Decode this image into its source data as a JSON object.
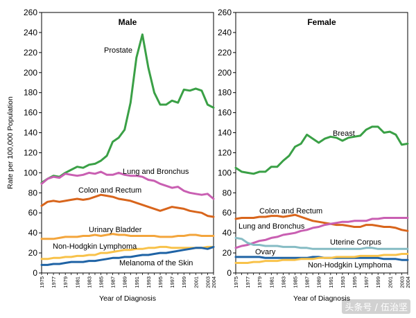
{
  "y_axis_label": "Rate per 100,000 Population",
  "watermark": "头条号 / 伍治坚",
  "chart_data": [
    {
      "type": "line",
      "title": "Male",
      "xlabel": "Year of Diagnosis",
      "ylabel": "Rate per 100,000 Population",
      "xlim": [
        1975,
        2004
      ],
      "ylim": [
        0,
        260
      ],
      "yticks": [
        0,
        20,
        40,
        60,
        80,
        100,
        120,
        140,
        160,
        180,
        200,
        220,
        240,
        260
      ],
      "xticks": [
        1975,
        1977,
        1979,
        1981,
        1983,
        1985,
        1987,
        1989,
        1991,
        1993,
        1995,
        1997,
        1999,
        2001,
        2003,
        2004
      ],
      "x": [
        1975,
        1976,
        1977,
        1978,
        1979,
        1980,
        1981,
        1982,
        1983,
        1984,
        1985,
        1986,
        1987,
        1988,
        1989,
        1990,
        1991,
        1992,
        1993,
        1994,
        1995,
        1996,
        1997,
        1998,
        1999,
        2000,
        2001,
        2002,
        2003,
        2004
      ],
      "series": [
        {
          "name": "Prostate",
          "color": "#3aa046",
          "values": [
            90,
            94,
            97,
            96,
            100,
            103,
            106,
            105,
            108,
            109,
            112,
            117,
            131,
            135,
            143,
            170,
            215,
            238,
            205,
            180,
            168,
            168,
            172,
            170,
            183,
            182,
            184,
            182,
            168,
            165
          ]
        },
        {
          "name": "Lung and Bronchus",
          "color": "#c95fb2",
          "values": [
            89,
            94,
            96,
            95,
            99,
            98,
            97,
            98,
            100,
            99,
            101,
            98,
            98,
            100,
            98,
            97,
            97,
            96,
            93,
            92,
            89,
            87,
            85,
            86,
            82,
            80,
            79,
            78,
            79,
            74
          ]
        },
        {
          "name": "Colon and Rectum",
          "color": "#d8651c",
          "values": [
            67,
            71,
            72,
            71,
            72,
            73,
            74,
            73,
            74,
            76,
            78,
            77,
            76,
            74,
            73,
            72,
            70,
            68,
            66,
            64,
            62,
            64,
            66,
            65,
            64,
            62,
            61,
            60,
            57,
            56
          ]
        },
        {
          "name": "Urinary Bladder",
          "color": "#f3a53c",
          "values": [
            34,
            34,
            34,
            35,
            36,
            36,
            36,
            37,
            37,
            38,
            37,
            38,
            39,
            38,
            38,
            37,
            37,
            37,
            37,
            37,
            36,
            36,
            36,
            37,
            37,
            38,
            38,
            37,
            37,
            37
          ]
        },
        {
          "name": "Non-Hodgkin Lymphoma",
          "color": "#f8c24a",
          "values": [
            14,
            14,
            15,
            15,
            16,
            16,
            17,
            17,
            18,
            18,
            20,
            20,
            21,
            22,
            23,
            23,
            24,
            24,
            25,
            25,
            26,
            26,
            25,
            25,
            25,
            25,
            25,
            25,
            26,
            26
          ]
        },
        {
          "name": "Melanoma of the Skin",
          "color": "#1f63a5",
          "values": [
            8,
            8,
            9,
            9,
            10,
            11,
            11,
            11,
            12,
            12,
            13,
            14,
            15,
            15,
            16,
            16,
            17,
            18,
            18,
            19,
            20,
            20,
            21,
            22,
            23,
            24,
            25,
            25,
            24,
            26
          ]
        }
      ],
      "labels": [
        "Prostate",
        "Lung and Bronchus",
        "Colon and Rectum",
        "Urinary Bladder",
        "Non-Hodgkin Lymphoma",
        "Melanoma of the Skin"
      ]
    },
    {
      "type": "line",
      "title": "Female",
      "xlabel": "Year of Diagnosis",
      "ylabel": "Rate per 100,000 Population",
      "xlim": [
        1975,
        2004
      ],
      "ylim": [
        0,
        260
      ],
      "yticks": [
        0,
        20,
        40,
        60,
        80,
        100,
        120,
        140,
        160,
        180,
        200,
        220,
        240,
        260
      ],
      "xticks": [
        1975,
        1977,
        1979,
        1981,
        1983,
        1985,
        1987,
        1989,
        1991,
        1993,
        1995,
        1997,
        1999,
        2001,
        2003,
        2004
      ],
      "x": [
        1975,
        1976,
        1977,
        1978,
        1979,
        1980,
        1981,
        1982,
        1983,
        1984,
        1985,
        1986,
        1987,
        1988,
        1989,
        1990,
        1991,
        1992,
        1993,
        1994,
        1995,
        1996,
        1997,
        1998,
        1999,
        2000,
        2001,
        2002,
        2003,
        2004
      ],
      "series": [
        {
          "name": "Breast",
          "color": "#3aa046",
          "values": [
            105,
            101,
            100,
            99,
            101,
            101,
            106,
            106,
            112,
            117,
            126,
            129,
            138,
            134,
            130,
            134,
            136,
            135,
            132,
            135,
            136,
            137,
            143,
            146,
            146,
            140,
            141,
            138,
            128,
            129
          ]
        },
        {
          "name": "Colon and Rectum",
          "color": "#d8651c",
          "values": [
            54,
            55,
            55,
            55,
            56,
            56,
            57,
            57,
            56,
            57,
            58,
            56,
            54,
            52,
            51,
            50,
            49,
            48,
            48,
            47,
            46,
            46,
            48,
            48,
            47,
            46,
            46,
            45,
            43,
            42
          ]
        },
        {
          "name": "Lung and Bronchus",
          "color": "#c95fb2",
          "values": [
            25,
            27,
            28,
            30,
            32,
            33,
            35,
            36,
            38,
            39,
            40,
            42,
            43,
            45,
            46,
            48,
            49,
            50,
            51,
            51,
            52,
            52,
            52,
            54,
            54,
            55,
            55,
            55,
            55,
            55
          ]
        },
        {
          "name": "Uterine Corpus",
          "color": "#86bcc4",
          "values": [
            35,
            34,
            30,
            28,
            28,
            27,
            27,
            27,
            26,
            26,
            26,
            25,
            25,
            24,
            24,
            24,
            24,
            24,
            24,
            24,
            24,
            24,
            25,
            25,
            24,
            24,
            24,
            24,
            24,
            24
          ]
        },
        {
          "name": "Ovary",
          "color": "#1f63a5",
          "values": [
            16,
            16,
            16,
            16,
            16,
            15,
            15,
            15,
            15,
            15,
            15,
            15,
            15,
            16,
            16,
            15,
            15,
            15,
            15,
            15,
            15,
            15,
            15,
            15,
            15,
            14,
            14,
            14,
            13,
            13
          ]
        },
        {
          "name": "Non-Hodgkin Lymphoma",
          "color": "#f8c24a",
          "values": [
            10,
            10,
            10,
            11,
            11,
            12,
            12,
            12,
            13,
            13,
            13,
            14,
            14,
            14,
            15,
            15,
            15,
            16,
            16,
            16,
            16,
            17,
            17,
            17,
            17,
            18,
            18,
            18,
            19,
            19
          ]
        }
      ],
      "labels": [
        "Breast",
        "Colon and Rectum",
        "Lung and Bronchus",
        "Uterine Corpus",
        "Ovary",
        "Non-Hodgkin Lymphoma"
      ]
    }
  ]
}
